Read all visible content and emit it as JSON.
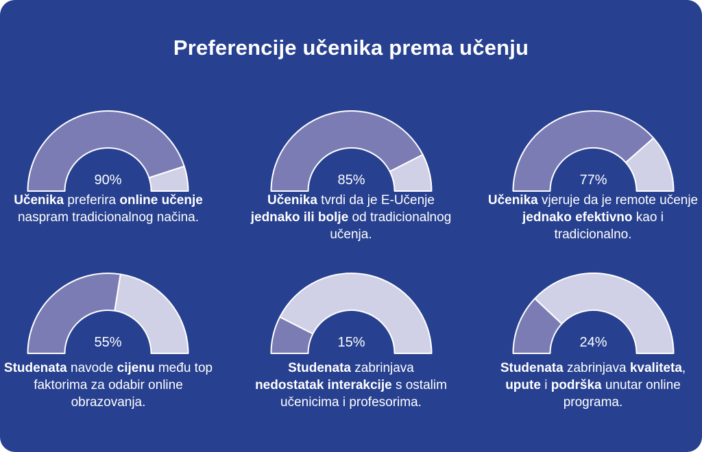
{
  "title": "Preferencije učenika prema učenju",
  "colors": {
    "background": "#27408f",
    "filled": "#7c7cb5",
    "remaining": "#d0d1e6",
    "stroke": "#ffffff"
  },
  "chart_data": [
    {
      "type": "gauge",
      "value": 90,
      "label": "90%",
      "caption": [
        {
          "text": "Učenika",
          "bold": true
        },
        {
          "text": " preferira ",
          "bold": false
        },
        {
          "text": "online učenje",
          "bold": true
        },
        {
          "text": " naspram tradicionalnog načina.",
          "bold": false
        }
      ]
    },
    {
      "type": "gauge",
      "value": 85,
      "label": "85%",
      "caption": [
        {
          "text": "Učenika",
          "bold": true
        },
        {
          "text": " tvrdi da je E-Učenje ",
          "bold": false
        },
        {
          "text": "jednako ili bolje",
          "bold": true
        },
        {
          "text": " od tradicionalnog učenja.",
          "bold": false
        }
      ]
    },
    {
      "type": "gauge",
      "value": 77,
      "label": "77%",
      "caption": [
        {
          "text": "Učenika",
          "bold": true
        },
        {
          "text": " vjeruje da je remote učenje ",
          "bold": false
        },
        {
          "text": "jednako efektivno",
          "bold": true
        },
        {
          "text": " kao i tradicionalno.",
          "bold": false
        }
      ]
    },
    {
      "type": "gauge",
      "value": 55,
      "label": "55%",
      "caption": [
        {
          "text": "Studenata",
          "bold": true
        },
        {
          "text": " navode ",
          "bold": false
        },
        {
          "text": "cijenu",
          "bold": true
        },
        {
          "text": " među top faktorima za odabir online obrazovanja.",
          "bold": false
        }
      ]
    },
    {
      "type": "gauge",
      "value": 15,
      "label": "15%",
      "caption": [
        {
          "text": "Studenata",
          "bold": true
        },
        {
          "text": " zabrinjava ",
          "bold": false
        },
        {
          "text": "nedostatak interakcije",
          "bold": true
        },
        {
          "text": " s ostalim učenicima i profesorima.",
          "bold": false
        }
      ]
    },
    {
      "type": "gauge",
      "value": 24,
      "label": "24%",
      "caption": [
        {
          "text": "Studenata",
          "bold": true
        },
        {
          "text": " zabrinjava ",
          "bold": false
        },
        {
          "text": "kvaliteta",
          "bold": true
        },
        {
          "text": ", ",
          "bold": false
        },
        {
          "text": "upute",
          "bold": true
        },
        {
          "text": " i ",
          "bold": false
        },
        {
          "text": "podrška",
          "bold": true
        },
        {
          "text": " unutar online programa.",
          "bold": false
        }
      ]
    }
  ]
}
